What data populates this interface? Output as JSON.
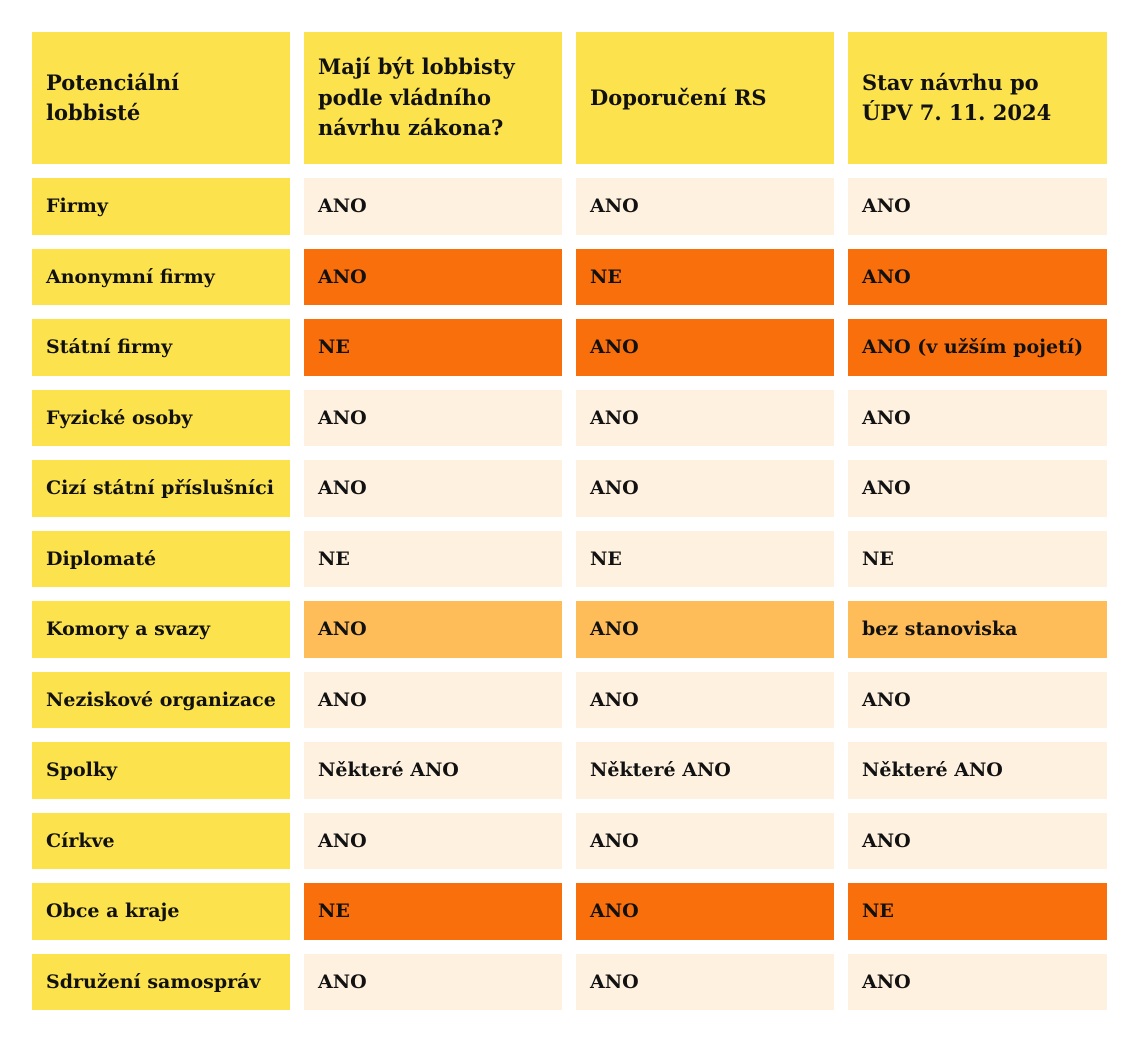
{
  "headers": [
    "Potenciální lobbisté",
    "Mají být lobbisty podle vládního návrhu zákona?",
    "Doporučení RS",
    "Stav návrhu po ÚPV 7. 11. 2024"
  ],
  "colors": {
    "yellow": "#FCE34E",
    "peach": "#FFF1E0",
    "orange": "#F96F0B",
    "light_orange": "#FFBD5A"
  },
  "rows": [
    {
      "label": "Firmy",
      "values": [
        "ANO",
        "ANO",
        "ANO"
      ],
      "highlight": "p"
    },
    {
      "label": "Anonymní firmy",
      "values": [
        "ANO",
        "NE",
        "ANO"
      ],
      "highlight": "o"
    },
    {
      "label": "Státní firmy",
      "values": [
        "NE",
        "ANO",
        "ANO (v užším pojetí)"
      ],
      "highlight": "o"
    },
    {
      "label": "Fyzické osoby",
      "values": [
        "ANO",
        "ANO",
        "ANO"
      ],
      "highlight": "p"
    },
    {
      "label": "Cizí státní příslušníci",
      "values": [
        "ANO",
        "ANO",
        "ANO"
      ],
      "highlight": "p"
    },
    {
      "label": "Diplomaté",
      "values": [
        "NE",
        "NE",
        "NE"
      ],
      "highlight": "p"
    },
    {
      "label": "Komory a svazy",
      "values": [
        "ANO",
        "ANO",
        "bez stanoviska"
      ],
      "highlight": "l"
    },
    {
      "label": "Neziskové organizace",
      "values": [
        "ANO",
        "ANO",
        "ANO"
      ],
      "highlight": "p"
    },
    {
      "label": "Spolky",
      "values": [
        "Některé ANO",
        "Některé ANO",
        "Některé ANO"
      ],
      "highlight": "p"
    },
    {
      "label": "Církve",
      "values": [
        "ANO",
        "ANO",
        "ANO"
      ],
      "highlight": "p"
    },
    {
      "label": "Obce a kraje",
      "values": [
        "NE",
        "ANO",
        "NE"
      ],
      "highlight": "o"
    },
    {
      "label": "Sdružení samospráv",
      "values": [
        "ANO",
        "ANO",
        "ANO"
      ],
      "highlight": "p"
    }
  ]
}
